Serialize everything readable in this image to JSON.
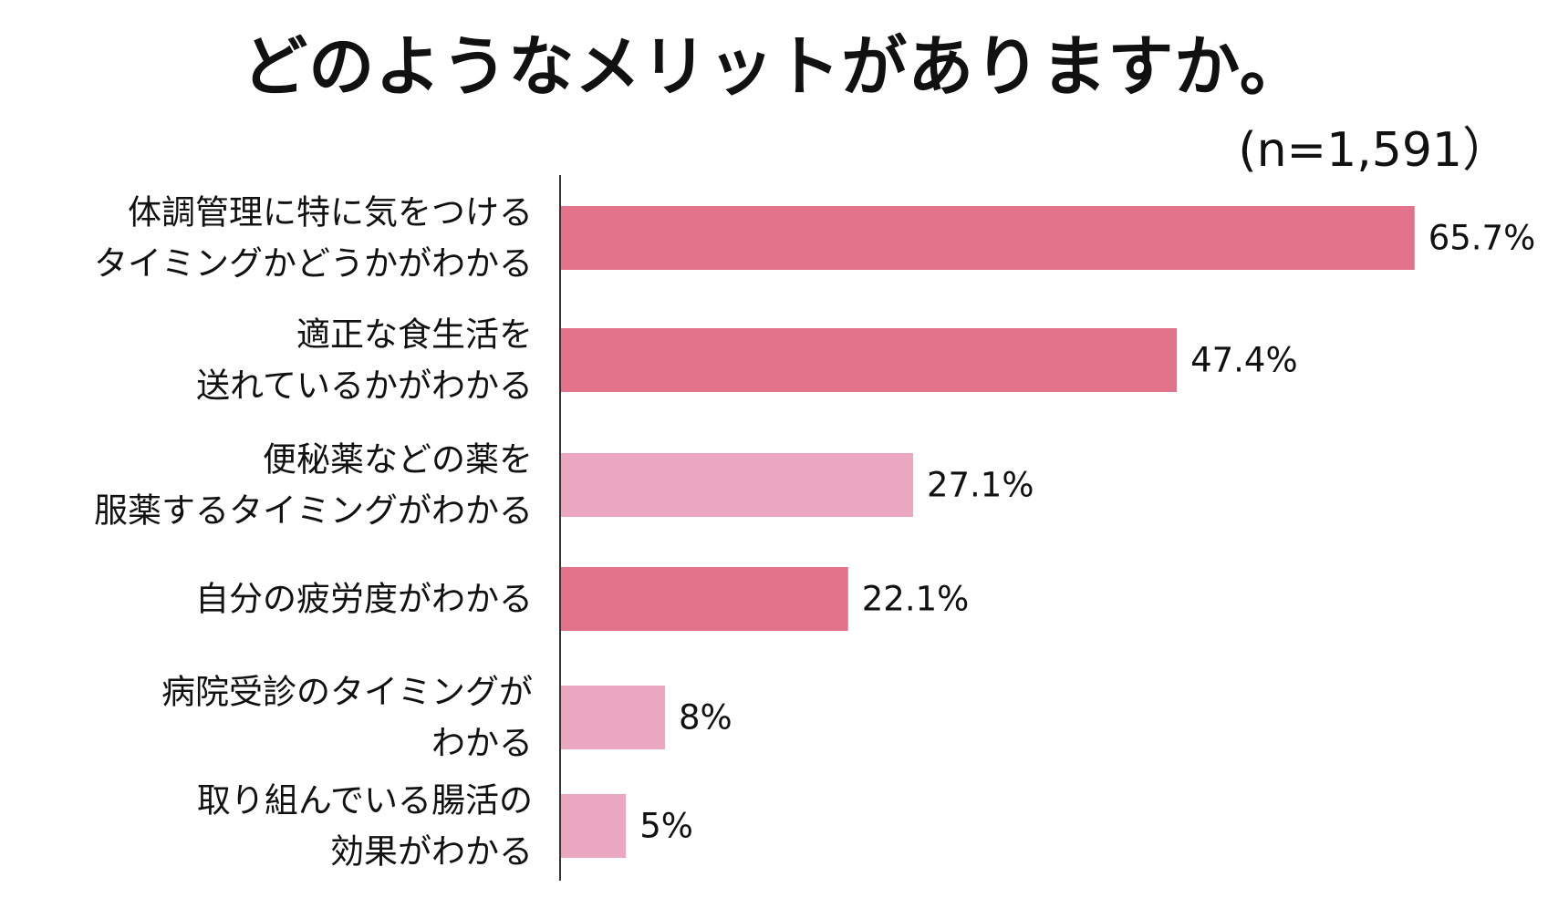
{
  "title": "どのようなメリットがありますか。",
  "sample_size": "(n=1,591）",
  "chart_data": {
    "type": "bar",
    "orientation": "horizontal",
    "title": "どのようなメリットがありますか。",
    "categories": [
      "体調管理に特に気をつける\nタイミングかどうかがわかる",
      "適正な食生活を\n送れているかがわかる",
      "便秘薬などの薬を\n服薬するタイミングがわかる",
      "自分の疲労度がわかる",
      "病院受診のタイミングが\nわかる",
      "取り組んでいる腸活の\n効果がわかる"
    ],
    "values": [
      65.7,
      47.4,
      27.1,
      22.1,
      8,
      5
    ],
    "value_labels": [
      "65.7%",
      "47.4%",
      "27.1%",
      "22.1%",
      "8%",
      "5%"
    ],
    "bar_colors": [
      "#e3738b",
      "#e3738b",
      "#eaa7bf",
      "#e3738b",
      "#eaa7bf",
      "#eaa7bf"
    ],
    "xlim": [
      0,
      66
    ],
    "grid": false,
    "legend": "none"
  }
}
